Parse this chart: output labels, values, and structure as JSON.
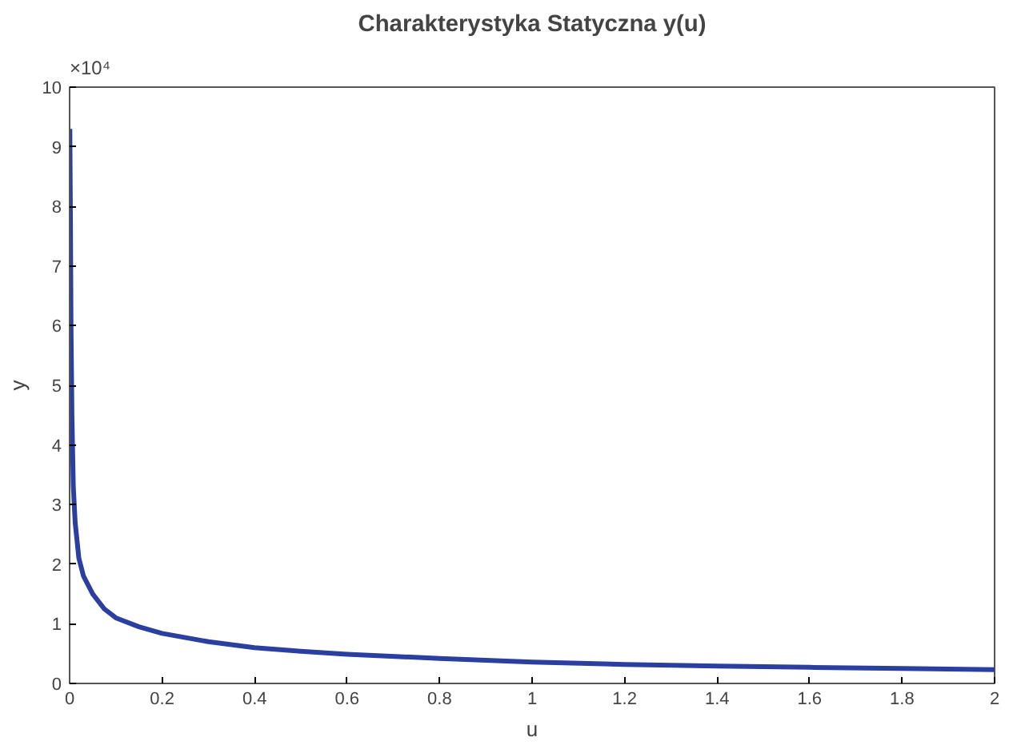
{
  "chart_data": {
    "type": "line",
    "title": "Charakterystyka Statyczna y(u)",
    "xlabel": "u",
    "ylabel": "y",
    "annotations": [
      "×10⁴"
    ],
    "x": [
      0.0005,
      0.002,
      0.003,
      0.005,
      0.008,
      0.012,
      0.02,
      0.03,
      0.05,
      0.075,
      0.1,
      0.15,
      0.2,
      0.3,
      0.4,
      0.5,
      0.6,
      0.8,
      1.0,
      1.2,
      1.4,
      1.6,
      1.8,
      2.0
    ],
    "series": [
      {
        "color": "#2b3fa0",
        "values": [
          9.3,
          7.5,
          6.0,
          4.5,
          3.3,
          2.7,
          2.1,
          1.8,
          1.5,
          1.25,
          1.1,
          0.95,
          0.84,
          0.7,
          0.6,
          0.54,
          0.49,
          0.42,
          0.36,
          0.32,
          0.29,
          0.27,
          0.25,
          0.23
        ]
      }
    ],
    "xlim": [
      0,
      2
    ],
    "ylim": [
      0,
      10
    ],
    "xticks": [
      0,
      0.2,
      0.4,
      0.6,
      0.8,
      1,
      1.2,
      1.4,
      1.6,
      1.8,
      2
    ],
    "yticks": [
      0,
      1,
      2,
      3,
      4,
      5,
      6,
      7,
      8,
      9,
      10
    ],
    "grid": false,
    "marker": "none",
    "line_style": "solid"
  }
}
